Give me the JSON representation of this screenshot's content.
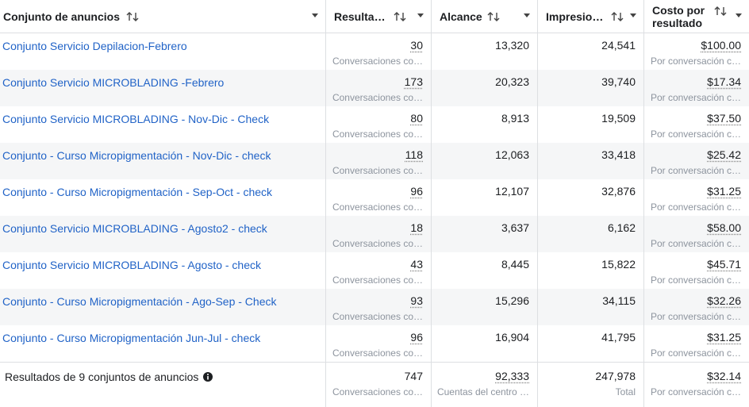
{
  "header": {
    "columns": [
      "Conjunto de anuncios",
      "Resulta…",
      "Alcance",
      "Impresio…",
      "Costo por resultado"
    ]
  },
  "rows": [
    {
      "name": "Conjunto Servicio Depilacion-Febrero",
      "results": "30",
      "results_sub": "Conversaciones co…",
      "reach": "13,320",
      "impressions": "24,541",
      "cost": "$100.00",
      "cost_sub": "Por conversación c…"
    },
    {
      "name": "Conjunto Servicio MICROBLADING -Febrero",
      "results": "173",
      "results_sub": "Conversaciones co…",
      "reach": "20,323",
      "impressions": "39,740",
      "cost": "$17.34",
      "cost_sub": "Por conversación c…"
    },
    {
      "name": "Conjunto Servicio MICROBLADING - Nov-Dic - Check",
      "results": "80",
      "results_sub": "Conversaciones co…",
      "reach": "8,913",
      "impressions": "19,509",
      "cost": "$37.50",
      "cost_sub": "Por conversación c…"
    },
    {
      "name": "Conjunto - Curso Micropigmentación - Nov-Dic - check",
      "results": "118",
      "results_sub": "Conversaciones co…",
      "reach": "12,063",
      "impressions": "33,418",
      "cost": "$25.42",
      "cost_sub": "Por conversación c…"
    },
    {
      "name": "Conjunto - Curso Micropigmentación - Sep-Oct - check",
      "results": "96",
      "results_sub": "Conversaciones co…",
      "reach": "12,107",
      "impressions": "32,876",
      "cost": "$31.25",
      "cost_sub": "Por conversación c…"
    },
    {
      "name": "Conjunto Servicio MICROBLADING - Agosto2 - check",
      "results": "18",
      "results_sub": "Conversaciones co…",
      "reach": "3,637",
      "impressions": "6,162",
      "cost": "$58.00",
      "cost_sub": "Por conversación c…"
    },
    {
      "name": "Conjunto Servicio MICROBLADING - Agosto - check",
      "results": "43",
      "results_sub": "Conversaciones co…",
      "reach": "8,445",
      "impressions": "15,822",
      "cost": "$45.71",
      "cost_sub": "Por conversación c…"
    },
    {
      "name": "Conjunto - Curso Micropigmentación - Ago-Sep - Check",
      "results": "93",
      "results_sub": "Conversaciones co…",
      "reach": "15,296",
      "impressions": "34,115",
      "cost": "$32.26",
      "cost_sub": "Por conversación c…"
    },
    {
      "name": "Conjunto - Curso Micropigmentación Jun-Jul - check",
      "results": "96",
      "results_sub": "Conversaciones co…",
      "reach": "16,904",
      "impressions": "41,795",
      "cost": "$31.25",
      "cost_sub": "Por conversación c…"
    }
  ],
  "footer": {
    "label": "Resultados de 9 conjuntos de anuncios",
    "results": "747",
    "results_sub": "Conversaciones co…",
    "reach": "92,333",
    "reach_sub": "Cuentas del centro …",
    "impressions": "247,978",
    "impressions_sub": "Total",
    "cost": "$32.14",
    "cost_sub": "Por conversación c…"
  }
}
